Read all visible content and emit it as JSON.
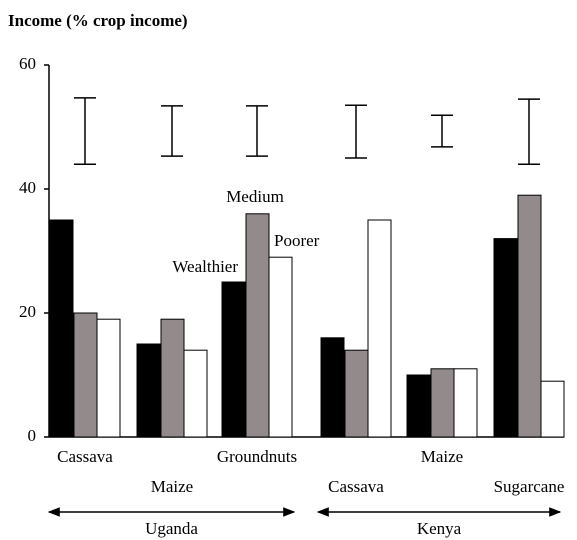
{
  "chart_data": {
    "type": "bar",
    "title": "Income (% crop income)",
    "categories": [
      "Cassava",
      "Maize",
      "Groundnuts",
      "Cassava",
      "Maize",
      "Sugarcane"
    ],
    "groups": [
      "Uganda",
      "Kenya"
    ],
    "series": [
      {
        "name": "Wealthier",
        "color": "#000000",
        "values": [
          35,
          15,
          25,
          16,
          10,
          32
        ]
      },
      {
        "name": "Medium",
        "color": "#938b8b",
        "values": [
          20,
          19,
          36,
          14,
          11,
          39
        ]
      },
      {
        "name": "Poorer",
        "color": "#ffffff",
        "values": [
          19,
          14,
          29,
          35,
          11,
          9
        ]
      }
    ],
    "error_bars": [
      {
        "low": 44,
        "high": 54.7
      },
      {
        "low": 45.3,
        "high": 53.4
      },
      {
        "low": 45.3,
        "high": 53.4
      },
      {
        "low": 45,
        "high": 53.5
      },
      {
        "low": 46.8,
        "high": 51.9
      },
      {
        "low": 44,
        "high": 54.5
      }
    ],
    "ylim": [
      0,
      60
    ],
    "yticks": [
      0,
      20,
      40,
      60
    ]
  }
}
